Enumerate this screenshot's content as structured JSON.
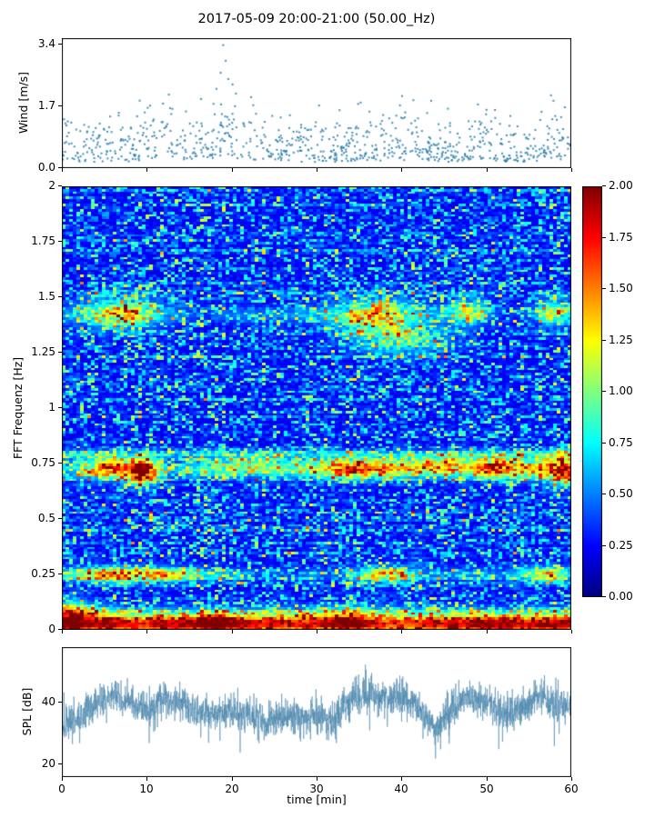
{
  "figure": {
    "title": "2017-05-09 20:00-21:00 (50.00_Hz)"
  },
  "chart_data": [
    {
      "id": "wind",
      "type": "scatter",
      "ylabel": "Wind [m/s]",
      "xlim": [
        0,
        60
      ],
      "ylim": [
        0,
        3.57
      ],
      "ytick_values": [
        0,
        1.7,
        3.4
      ],
      "ytick_labels": [
        "0.0",
        "1.7",
        "3.4"
      ],
      "xtick_values": [
        0,
        10,
        20,
        30,
        40,
        50,
        60
      ],
      "marker_color": "#2e7fab",
      "n_points": 850,
      "seed": 7,
      "envelope_t": [
        0,
        2,
        4,
        6,
        8,
        10,
        12,
        14,
        16,
        18,
        20,
        22,
        24,
        26,
        28,
        30,
        32,
        34,
        36,
        38,
        40,
        42,
        44,
        46,
        48,
        50,
        52,
        54,
        56,
        58,
        60
      ],
      "envelope_v": [
        0.55,
        0.6,
        0.6,
        0.7,
        0.65,
        0.8,
        0.9,
        0.8,
        0.85,
        1.0,
        1.05,
        0.8,
        0.75,
        0.65,
        0.6,
        0.55,
        0.6,
        0.7,
        0.65,
        0.7,
        0.7,
        0.8,
        0.6,
        0.6,
        0.7,
        0.8,
        0.6,
        0.55,
        0.6,
        0.8,
        0.7
      ],
      "outliers": [
        [
          19.0,
          3.38
        ],
        [
          19.3,
          2.95
        ],
        [
          18.7,
          2.62
        ],
        [
          19.6,
          2.45
        ],
        [
          20.1,
          2.3
        ],
        [
          18.2,
          2.18
        ],
        [
          20.5,
          2.05
        ],
        [
          12.6,
          2.02
        ],
        [
          22.3,
          1.95
        ],
        [
          16.4,
          1.9
        ],
        [
          57.6,
          2.0
        ],
        [
          57.9,
          1.85
        ],
        [
          30.3,
          1.72
        ],
        [
          35.2,
          1.8
        ],
        [
          43.5,
          1.85
        ],
        [
          49.0,
          1.75
        ]
      ]
    },
    {
      "id": "spectrogram",
      "type": "heatmap",
      "ylabel": "FFT Frequenz [Hz]",
      "xlim": [
        0,
        60
      ],
      "ylim": [
        0,
        2
      ],
      "ytick_values": [
        0,
        0.25,
        0.5,
        0.75,
        1,
        1.25,
        1.5,
        1.75,
        2
      ],
      "ytick_labels": [
        "0",
        "0.25",
        "0.5",
        "0.75",
        "1",
        "1.25",
        "1.5",
        "1.75",
        "2"
      ],
      "xtick_values": [
        0,
        10,
        20,
        30,
        40,
        50,
        60
      ],
      "colormap": "jet",
      "vmin": 0,
      "vmax": 2,
      "grid_bins": [
        140,
        176
      ],
      "seed": 11,
      "background": {
        "base": 0.2,
        "speckle": 0.85,
        "row_streak": 0.55
      },
      "bands": [
        {
          "f": 0.025,
          "hw": 0.03,
          "amp": 1.7,
          "base": 0.75,
          "tvar": 0.3
        },
        {
          "f": 0.085,
          "hw": 0.02,
          "amp": 0.45,
          "base": 0.3,
          "tvar": 0.8
        },
        {
          "f": 0.25,
          "hw": 0.018,
          "amp": 0.4,
          "base": 0.25,
          "tvar": 1.0
        },
        {
          "f": 0.72,
          "hw": 0.025,
          "amp": 0.7,
          "base": 0.3,
          "tvar": 0.9
        },
        {
          "f": 0.79,
          "hw": 0.013,
          "amp": 0.45,
          "base": 0.5,
          "tvar": 0.6
        },
        {
          "f": 1.42,
          "hw": 0.025,
          "amp": 0.22,
          "base": 0.2,
          "tvar": 1.1
        }
      ],
      "blobs": [
        [
          7,
          1.43,
          3.0,
          0.05,
          0.85
        ],
        [
          37,
          1.42,
          3.5,
          0.05,
          0.95
        ],
        [
          48,
          1.44,
          1.5,
          0.04,
          0.7
        ],
        [
          58,
          1.43,
          1.5,
          0.04,
          0.8
        ],
        [
          40,
          1.31,
          4.0,
          0.05,
          0.55
        ],
        [
          9.5,
          0.71,
          1.2,
          0.04,
          1.4
        ],
        [
          6,
          0.73,
          3.0,
          0.035,
          0.9
        ],
        [
          22,
          0.74,
          3.0,
          0.03,
          0.5
        ],
        [
          35,
          0.73,
          4.0,
          0.035,
          0.85
        ],
        [
          44,
          0.74,
          3.0,
          0.03,
          0.7
        ],
        [
          52,
          0.73,
          3.5,
          0.035,
          0.9
        ],
        [
          59,
          0.72,
          1.5,
          0.045,
          1.2
        ],
        [
          6,
          0.25,
          2.5,
          0.025,
          0.8
        ],
        [
          12,
          0.25,
          2.0,
          0.025,
          0.7
        ],
        [
          38,
          0.25,
          2.5,
          0.025,
          0.9
        ],
        [
          57,
          0.25,
          2.0,
          0.025,
          0.8
        ],
        [
          1,
          0.08,
          1.5,
          0.04,
          0.9
        ],
        [
          18,
          0.04,
          2.0,
          0.03,
          0.5
        ],
        [
          33,
          0.04,
          2.0,
          0.03,
          0.5
        ]
      ]
    },
    {
      "id": "spl",
      "type": "line",
      "ylabel": "SPL [dB]",
      "xlabel": "time [min]",
      "xlim": [
        0,
        60
      ],
      "ylim": [
        16,
        58
      ],
      "ytick_values": [
        20,
        40
      ],
      "ytick_labels": [
        "20",
        "40"
      ],
      "xtick_values": [
        0,
        10,
        20,
        30,
        40,
        50,
        60
      ],
      "xtick_labels": [
        "0",
        "10",
        "20",
        "30",
        "40",
        "50",
        "60"
      ],
      "line_color": "#4c87ad",
      "n_points": 2600,
      "seed": 3,
      "noise_db": 2.8,
      "envelope_t": [
        0,
        2,
        4,
        6,
        8,
        10,
        12,
        14,
        16,
        18,
        20,
        22,
        24,
        26,
        28,
        30,
        32,
        34,
        36,
        38,
        40,
        42,
        44,
        46,
        48,
        50,
        52,
        54,
        56,
        58,
        60
      ],
      "envelope_v": [
        33,
        35,
        40,
        42,
        40,
        38,
        41,
        40,
        37,
        36,
        38,
        36,
        34,
        36,
        35,
        36,
        34,
        41,
        43,
        42,
        42,
        38,
        31,
        39,
        42,
        40,
        36,
        38,
        42,
        40,
        38
      ],
      "dips": [
        [
          2.1,
          27
        ],
        [
          10.3,
          27
        ],
        [
          21.0,
          24
        ],
        [
          31.2,
          28
        ],
        [
          44.0,
          22
        ],
        [
          44.6,
          25
        ],
        [
          58.0,
          26
        ]
      ]
    }
  ],
  "colorbar": {
    "colormap": "jet",
    "vmin": 0,
    "vmax": 2,
    "tick_values": [
      2,
      1.75,
      1.5,
      1.25,
      1,
      0.75,
      0.5,
      0.25,
      0
    ],
    "tick_labels": [
      "2.00",
      "1.75",
      "1.50",
      "1.25",
      "1.00",
      "0.75",
      "0.50",
      "0.25",
      "0.00"
    ]
  }
}
